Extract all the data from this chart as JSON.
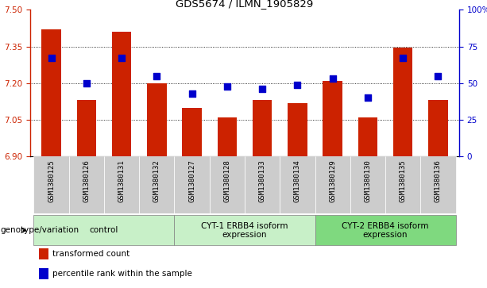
{
  "title": "GDS5674 / ILMN_1905829",
  "samples": [
    "GSM1380125",
    "GSM1380126",
    "GSM1380131",
    "GSM1380132",
    "GSM1380127",
    "GSM1380128",
    "GSM1380133",
    "GSM1380134",
    "GSM1380129",
    "GSM1380130",
    "GSM1380135",
    "GSM1380136"
  ],
  "bar_values": [
    7.42,
    7.13,
    7.41,
    7.2,
    7.1,
    7.06,
    7.13,
    7.12,
    7.21,
    7.06,
    7.345,
    7.13
  ],
  "dot_values_pct": [
    67,
    50,
    67,
    55,
    43,
    48,
    46,
    49,
    53,
    40,
    67,
    55
  ],
  "ylim_left": [
    6.9,
    7.5
  ],
  "ylim_right": [
    0,
    100
  ],
  "yticks_left": [
    6.9,
    7.05,
    7.2,
    7.35,
    7.5
  ],
  "yticks_right": [
    0,
    25,
    50,
    75,
    100
  ],
  "bar_color": "#CC2200",
  "dot_color": "#0000CC",
  "tick_bg_color": "#CCCCCC",
  "group_light_color": "#C8F0C8",
  "group_dark_color": "#7FD97F",
  "groups": [
    {
      "label": "control",
      "start": 0,
      "end": 3,
      "color": "#C8F0C8"
    },
    {
      "label": "CYT-1 ERBB4 isoform\nexpression",
      "start": 4,
      "end": 7,
      "color": "#C8F0C8"
    },
    {
      "label": "CYT-2 ERBB4 isoform\nexpression",
      "start": 8,
      "end": 11,
      "color": "#7FD97F"
    }
  ],
  "legend_items": [
    {
      "color": "#CC2200",
      "label": "transformed count"
    },
    {
      "color": "#0000CC",
      "label": "percentile rank within the sample"
    }
  ],
  "base_value": 6.9,
  "dot_size": 30,
  "bar_width": 0.55,
  "genotype_label": "genotype/variation"
}
